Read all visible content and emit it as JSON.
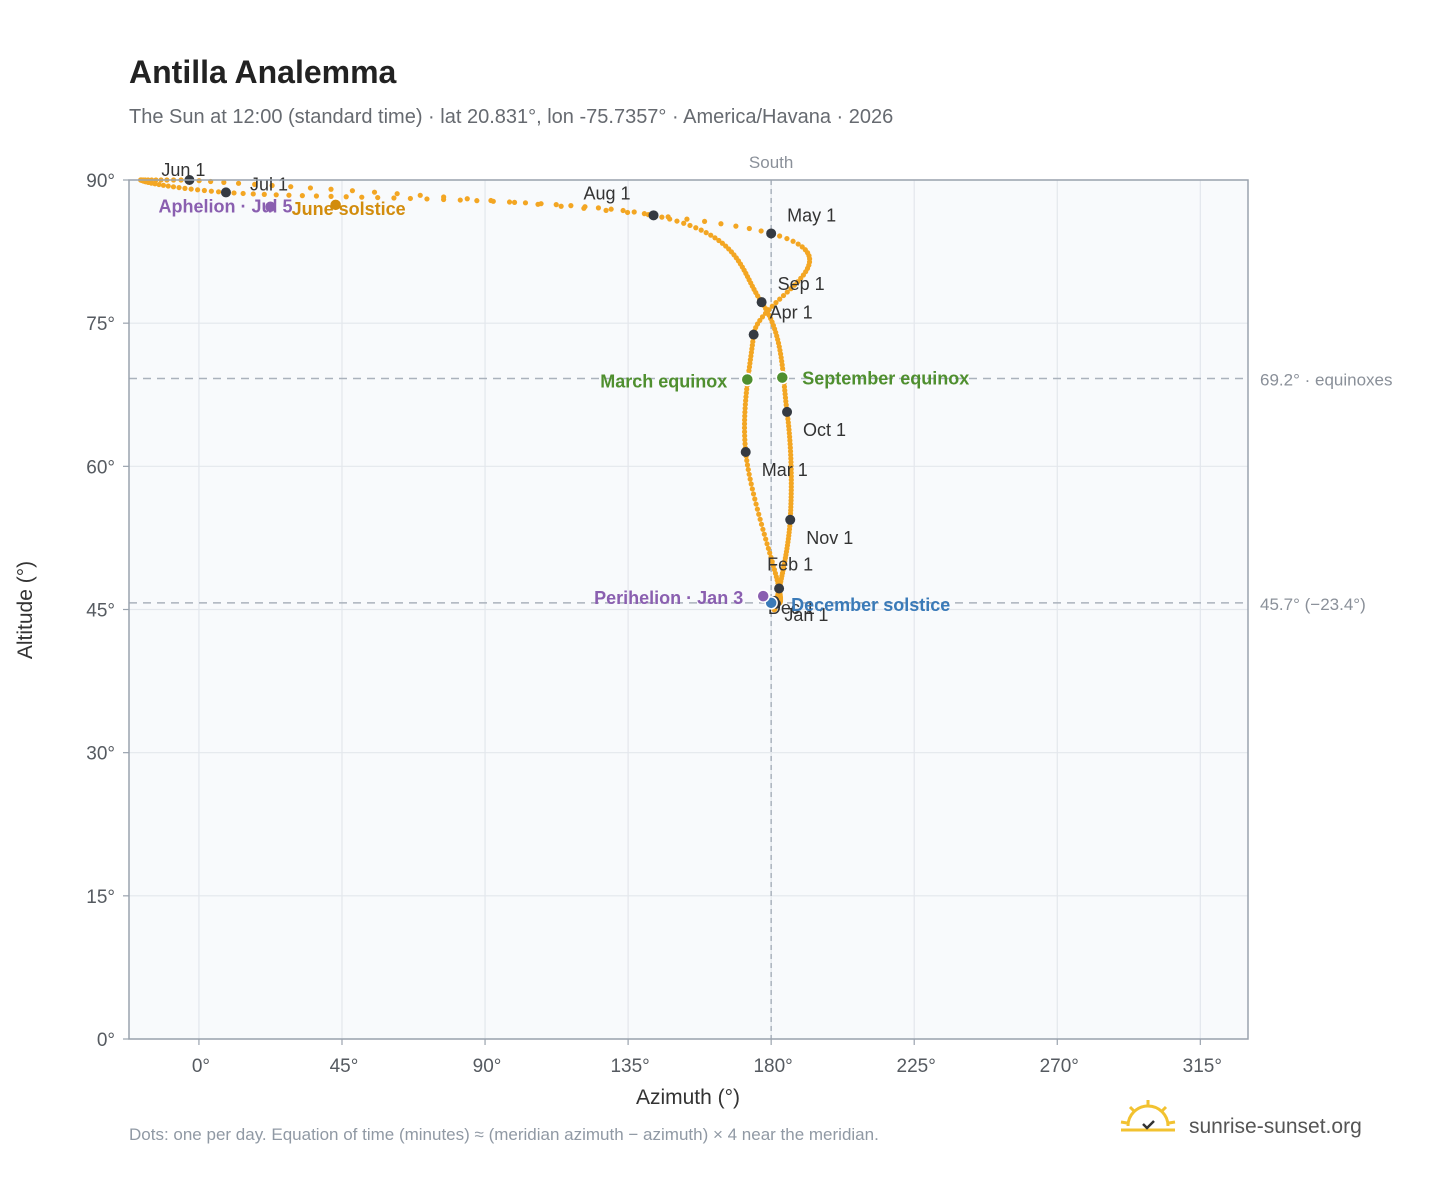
{
  "chart_data": {
    "type": "scatter",
    "title": "Antilla Analemma",
    "subtitle": "The Sun at 12:00 (standard time) · lat 20.831°, lon -75.7357° · America/Havana · 2026",
    "xlabel": "Azimuth (°)",
    "ylabel": "Altitude (°)",
    "xlim": [
      -22,
      330
    ],
    "ylim": [
      0,
      90
    ],
    "x_ticks": [
      0,
      45,
      90,
      135,
      180,
      225,
      270,
      315
    ],
    "x_tick_labels": [
      "0°",
      "45°",
      "90°",
      "135°",
      "180°",
      "225°",
      "270°",
      "315°"
    ],
    "y_ticks": [
      0,
      15,
      30,
      45,
      60,
      75,
      90
    ],
    "y_tick_labels": [
      "0°",
      "15°",
      "30°",
      "45°",
      "60°",
      "75°",
      "90°"
    ],
    "grid": true,
    "meridian": {
      "azimuth": 180,
      "label": "South"
    },
    "ref_lines": [
      {
        "altitude": 69.2,
        "label": "69.2° · equinoxes"
      },
      {
        "altitude": 45.7,
        "label": "45.7° (−23.4°)"
      }
    ],
    "month_markers": [
      {
        "label": "Jan 1",
        "az": 181,
        "alt": 45.9
      },
      {
        "label": "Feb 1",
        "az": 182.5,
        "alt": 47.2
      },
      {
        "label": "Mar 1",
        "az": 172,
        "alt": 61.5
      },
      {
        "label": "Apr 1",
        "az": 174.5,
        "alt": 73.8
      },
      {
        "label": "May 1",
        "az": 180,
        "alt": 84.4
      },
      {
        "label": "Jun 1",
        "az": -3,
        "alt": 90
      },
      {
        "label": "Jul 1",
        "az": 8.5,
        "alt": 88.7
      },
      {
        "label": "Aug 1",
        "az": 143,
        "alt": 86.3
      },
      {
        "label": "Sep 1",
        "az": 177,
        "alt": 77.2
      },
      {
        "label": "Oct 1",
        "az": 185,
        "alt": 65.7
      },
      {
        "label": "Nov 1",
        "az": 186,
        "alt": 54.4
      },
      {
        "label": "Dec 1",
        "az": 181.5,
        "alt": 45.6
      }
    ],
    "events": [
      {
        "label": "March equinox",
        "az": 172.5,
        "alt": 69.1,
        "color": "#4f8f2f"
      },
      {
        "label": "September equinox",
        "az": 183.5,
        "alt": 69.3,
        "color": "#4f8f2f"
      },
      {
        "label": "June solstice",
        "az": 43,
        "alt": 87.4,
        "color": "#d28c0d"
      },
      {
        "label": "December solstice",
        "az": 180,
        "alt": 45.7,
        "color": "#3a7ab8"
      },
      {
        "label": "Aphelion · Jul 5",
        "az": 22.5,
        "alt": 87.2,
        "color": "#8a5fb0"
      },
      {
        "label": "Perihelion · Jan 3",
        "az": 177.5,
        "alt": 46.4,
        "color": "#8a5fb0"
      }
    ],
    "path_color": "#f3a623",
    "footer": "Dots: one per day. Equation of time (minutes) ≈ (meridian azimuth − azimuth) × 4 near the meridian.",
    "brand": "sunrise-sunset.org"
  }
}
